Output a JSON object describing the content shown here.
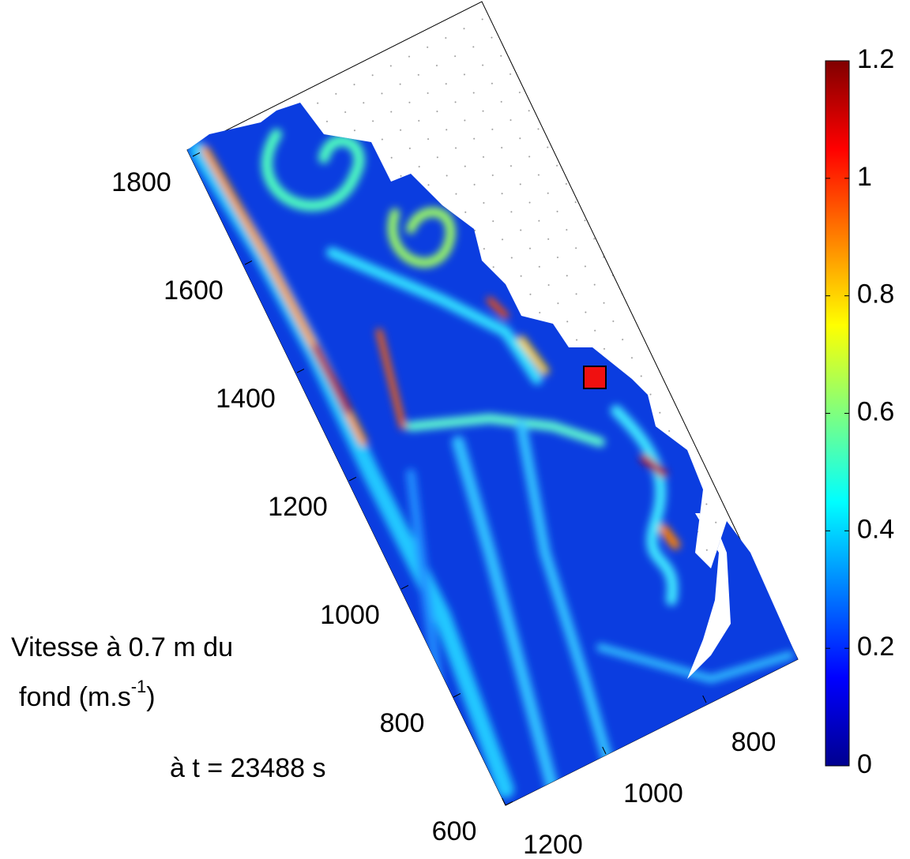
{
  "chart_data": {
    "type": "heatmap",
    "xlim": [
      1200,
      620
    ],
    "ylim": [
      600,
      1810
    ],
    "xticks": [
      1200,
      1000,
      800
    ],
    "yticks": [
      600,
      800,
      1000,
      1200,
      1400,
      1600,
      1800
    ],
    "colorbar": {
      "clim": [
        0,
        1.2
      ],
      "ticks": [
        0,
        0.2,
        0.4,
        0.6,
        0.8,
        1,
        1.2
      ],
      "colormap": "jet"
    },
    "label": {
      "line1": "Vitesse à 0.7 m du",
      "line2": "fond (m.s",
      "exponent": "-1",
      "close": ")"
    },
    "time_label": "à t = 23488 s"
  }
}
